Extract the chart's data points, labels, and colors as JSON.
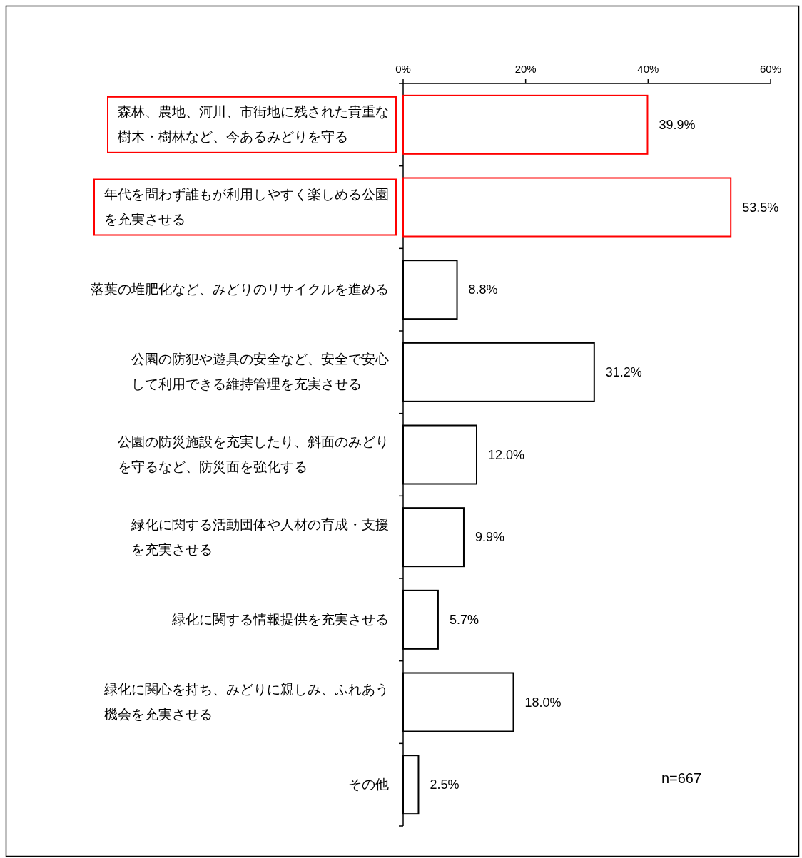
{
  "chart_data": {
    "type": "bar",
    "orientation": "horizontal",
    "categories": [
      "森林、農地、河川、市街地に残された貴重な樹木・樹林など、今あるみどりを守る",
      "年代を問わず誰もが利用しやすく楽しめる公園を充実させる",
      "落葉の堆肥化など、みどりのリサイクルを進める",
      "公園の防犯や遊具の安全など、安全で安心して利用できる維持管理を充実させる",
      "公園の防災施設を充実したり、斜面のみどりを守るなど、防災面を強化する",
      "緑化に関する活動団体や人材の育成・支援を充実させる",
      "緑化に関する情報提供を充実させる",
      "緑化に関心を持ち、みどりに親しみ、ふれあう機会を充実させる",
      "その他"
    ],
    "values": [
      39.9,
      53.5,
      8.8,
      31.2,
      12.0,
      9.9,
      5.7,
      18.0,
      2.5
    ],
    "value_labels": [
      "39.9%",
      "53.5%",
      "8.8%",
      "31.2%",
      "12.0%",
      "9.9%",
      "5.7%",
      "18.0%",
      "2.5%"
    ],
    "colors": [
      "#ff0000",
      "#ff0000",
      "#000000",
      "#000000",
      "#000000",
      "#000000",
      "#000000",
      "#000000",
      "#000000"
    ],
    "xlim": [
      0,
      60
    ],
    "xticks": [
      {
        "value": 0,
        "label": "0%"
      },
      {
        "value": 20,
        "label": "20%"
      },
      {
        "value": 40,
        "label": "40%"
      },
      {
        "value": 60,
        "label": "60%"
      }
    ],
    "annotations": [
      "n=667"
    ]
  }
}
